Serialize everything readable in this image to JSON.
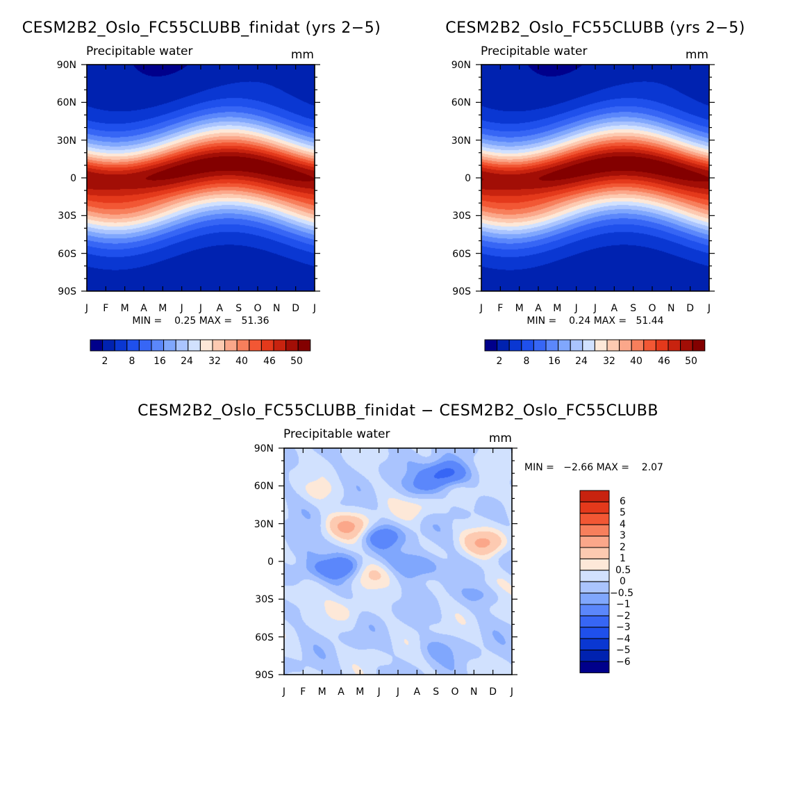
{
  "chart_data": [
    {
      "type": "heatmap",
      "id": "finidat",
      "title": "CESM2B2_Oslo_FC55CLUBB_finidat (yrs 2−5)",
      "left_label": "Precipitable water",
      "right_label": "mm",
      "x_tick_labels": [
        "J",
        "F",
        "M",
        "A",
        "M",
        "J",
        "J",
        "A",
        "S",
        "O",
        "N",
        "D",
        "J"
      ],
      "y_tick_labels": [
        "90N",
        "60N",
        "30N",
        "0",
        "30S",
        "60S",
        "90S"
      ],
      "ylim": [
        -90,
        90
      ],
      "stats_text": "MIN =    0.25 MAX =   51.36",
      "min": 0.25,
      "max": 51.36,
      "colorbar": {
        "levels": [
          2,
          5,
          8,
          11,
          14,
          17,
          20,
          23,
          26,
          29,
          32,
          35,
          38,
          41,
          44,
          47,
          50
        ],
        "labels": [
          "2",
          "8",
          "16",
          "24",
          "32",
          "40",
          "46",
          "50"
        ],
        "colors": [
          "#00008b",
          "#0022b0",
          "#0a37d2",
          "#1f50ec",
          "#3766f5",
          "#5b87fb",
          "#80a7fd",
          "#aac4fe",
          "#d1e1fe",
          "#fde8d8",
          "#fdcab1",
          "#fba78a",
          "#f77f5c",
          "#f25734",
          "#e4391b",
          "#c8230f",
          "#a20e06",
          "#830000"
        ]
      },
      "peak_month": 7.5
    },
    {
      "type": "heatmap",
      "id": "control",
      "title": "CESM2B2_Oslo_FC55CLUBB (yrs 2−5)",
      "left_label": "Precipitable water",
      "right_label": "mm",
      "x_tick_labels": [
        "J",
        "F",
        "M",
        "A",
        "M",
        "J",
        "J",
        "A",
        "S",
        "O",
        "N",
        "D",
        "J"
      ],
      "y_tick_labels": [
        "90N",
        "60N",
        "30N",
        "0",
        "30S",
        "60S",
        "90S"
      ],
      "ylim": [
        -90,
        90
      ],
      "stats_text": "MIN =    0.24 MAX =   51.44",
      "min": 0.24,
      "max": 51.44,
      "colorbar": {
        "levels": [
          2,
          5,
          8,
          11,
          14,
          17,
          20,
          23,
          26,
          29,
          32,
          35,
          38,
          41,
          44,
          47,
          50
        ],
        "labels": [
          "2",
          "8",
          "16",
          "24",
          "32",
          "40",
          "46",
          "50"
        ],
        "colors": [
          "#00008b",
          "#0022b0",
          "#0a37d2",
          "#1f50ec",
          "#3766f5",
          "#5b87fb",
          "#80a7fd",
          "#aac4fe",
          "#d1e1fe",
          "#fde8d8",
          "#fdcab1",
          "#fba78a",
          "#f77f5c",
          "#f25734",
          "#e4391b",
          "#c8230f",
          "#a20e06",
          "#830000"
        ]
      },
      "peak_month": 7.5
    },
    {
      "type": "heatmap",
      "id": "difference",
      "title": "CESM2B2_Oslo_FC55CLUBB_finidat − CESM2B2_Oslo_FC55CLUBB",
      "left_label": "Precipitable water",
      "right_label": "mm",
      "x_tick_labels": [
        "J",
        "F",
        "M",
        "A",
        "M",
        "J",
        "J",
        "A",
        "S",
        "O",
        "N",
        "D",
        "J"
      ],
      "y_tick_labels": [
        "90N",
        "60N",
        "30N",
        "0",
        "30S",
        "60S",
        "90S"
      ],
      "ylim": [
        -90,
        90
      ],
      "stats_text": "MIN =   −2.66 MAX =    2.07",
      "min": -2.66,
      "max": 2.07,
      "colorbar": {
        "levels": [
          -6,
          -5,
          -4,
          -3,
          -2,
          -1,
          -0.5,
          0,
          0.5,
          1,
          2,
          3,
          4,
          5,
          6
        ],
        "labels": [
          "6",
          "5",
          "4",
          "3",
          "2",
          "1",
          "0.5",
          "0",
          "−0.5",
          "−1",
          "−2",
          "−3",
          "−4",
          "−5",
          "−6"
        ],
        "colors": [
          "#00008b",
          "#0022b0",
          "#0a37d2",
          "#1f50ec",
          "#3766f5",
          "#5b87fb",
          "#80a7fd",
          "#aac4fe",
          "#d1e1fe",
          "#fde8d8",
          "#fdcab1",
          "#fba78a",
          "#f77f5c",
          "#f25734",
          "#e4391b",
          "#c8230f"
        ]
      },
      "anomalies": [
        {
          "month": 3.4,
          "lat": 28,
          "value": 2.1
        },
        {
          "month": 10.6,
          "lat": 15,
          "value": 2.0
        },
        {
          "month": 7.0,
          "lat": 42,
          "value": 0.8
        },
        {
          "month": 8.5,
          "lat": 70,
          "value": -2.6
        },
        {
          "month": 7.4,
          "lat": 60,
          "value": -1.2
        },
        {
          "month": 5.2,
          "lat": 20,
          "value": -1.5
        },
        {
          "month": 3.0,
          "lat": -5,
          "value": -1.6
        },
        {
          "month": 7.3,
          "lat": -5,
          "value": -1.1
        },
        {
          "month": 1.3,
          "lat": -5,
          "value": -0.7
        },
        {
          "month": 10.5,
          "lat": -25,
          "value": -0.9
        },
        {
          "month": 4.5,
          "lat": -10,
          "value": 1.0
        },
        {
          "month": 10.8,
          "lat": -20,
          "value": 0.7
        },
        {
          "month": 0.6,
          "lat": -25,
          "value": 0.6
        },
        {
          "month": 3.4,
          "lat": -40,
          "value": 0.5
        },
        {
          "month": 6.5,
          "lat": 0,
          "value": -0.6
        },
        {
          "month": 2.0,
          "lat": 55,
          "value": 0.6
        },
        {
          "month": 10.5,
          "lat": 55,
          "value": 0.6
        },
        {
          "month": 8.0,
          "lat": -70,
          "value": -0.6
        },
        {
          "month": 1.0,
          "lat": 10,
          "value": -0.6
        }
      ]
    }
  ]
}
